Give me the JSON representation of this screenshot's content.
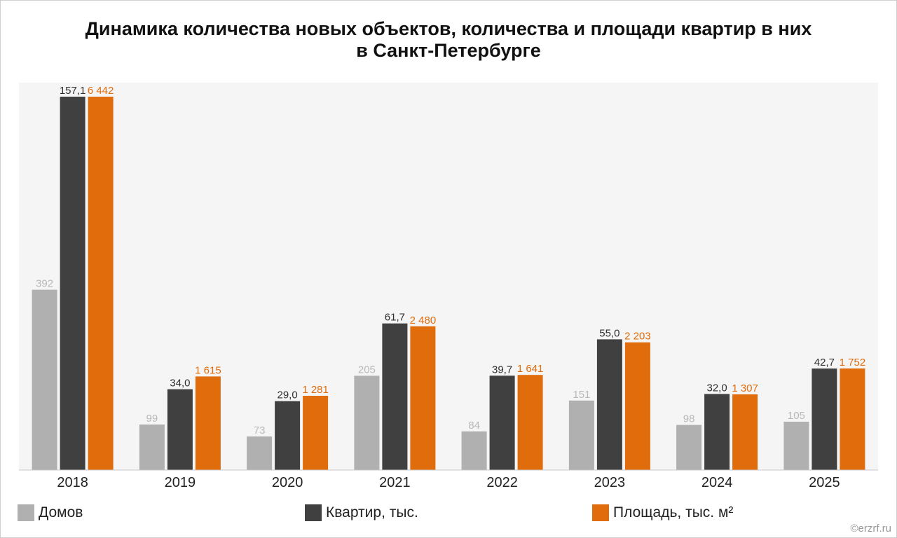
{
  "chart_data": {
    "type": "bar",
    "title_line1": "Динамика количества новых объектов, количества и площади квартир в них",
    "title_line2": "в Санкт-Петербурге",
    "categories": [
      "2018",
      "2019",
      "2020",
      "2021",
      "2022",
      "2023",
      "2024",
      "2025"
    ],
    "series": [
      {
        "name": "Домов",
        "color": "#b0b0b0",
        "values": [
          392,
          99,
          73,
          205,
          84,
          151,
          98,
          105
        ],
        "labels": [
          "392",
          "99",
          "73",
          "205",
          "84",
          "151",
          "98",
          "105"
        ]
      },
      {
        "name": "Квартир, тыс.",
        "color": "#404040",
        "values": [
          157.1,
          34.0,
          29.0,
          61.7,
          39.7,
          55.0,
          32.0,
          42.7
        ],
        "labels": [
          "157,1",
          "34,0",
          "29,0",
          "61,7",
          "39,7",
          "55,0",
          "32,0",
          "42,7"
        ]
      },
      {
        "name": "Площадь, тыс. м²",
        "color": "#e06c0c",
        "values": [
          6442,
          1615,
          1281,
          2480,
          1641,
          2203,
          1307,
          1752
        ],
        "labels": [
          "6 442",
          "1 615",
          "1 281",
          "2 480",
          "1 641",
          "2 203",
          "1 307",
          "1 752"
        ]
      }
    ],
    "xlabel": "",
    "ylabel": "",
    "grid": false,
    "legend_position": "bottom",
    "credit": "©erzrf.ru"
  }
}
